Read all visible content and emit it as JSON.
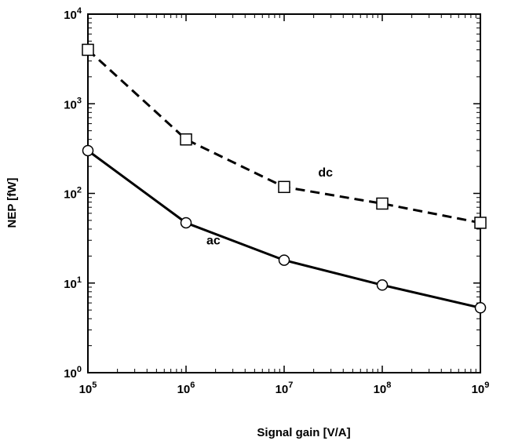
{
  "chart_data": {
    "type": "line",
    "xlabel": "Signal gain [V/A]",
    "ylabel": "NEP [fW]",
    "xscale": "log",
    "yscale": "log",
    "xlim": [
      100000,
      1000000000
    ],
    "ylim": [
      1,
      10000
    ],
    "x_tick_labels": [
      {
        "base": "10",
        "exp": "5"
      },
      {
        "base": "10",
        "exp": "6"
      },
      {
        "base": "10",
        "exp": "7"
      },
      {
        "base": "10",
        "exp": "8"
      },
      {
        "base": "10",
        "exp": "9"
      }
    ],
    "y_tick_labels": [
      {
        "base": "10",
        "exp": "0"
      },
      {
        "base": "10",
        "exp": "1"
      },
      {
        "base": "10",
        "exp": "2"
      },
      {
        "base": "10",
        "exp": "3"
      },
      {
        "base": "10",
        "exp": "4"
      }
    ],
    "grid": false,
    "legend": "none",
    "x": [
      100000,
      1000000,
      10000000,
      100000000,
      1000000000
    ],
    "series": [
      {
        "name": "dc",
        "line_style": "dashed",
        "marker": "square",
        "values": [
          4000,
          400,
          118,
          77,
          47
        ]
      },
      {
        "name": "ac",
        "line_style": "solid",
        "marker": "circle",
        "values": [
          300,
          47,
          18,
          9.5,
          5.3
        ]
      }
    ],
    "colors": {
      "line": "#000000",
      "marker_fill": "#ffffff",
      "background": "#ffffff"
    }
  }
}
